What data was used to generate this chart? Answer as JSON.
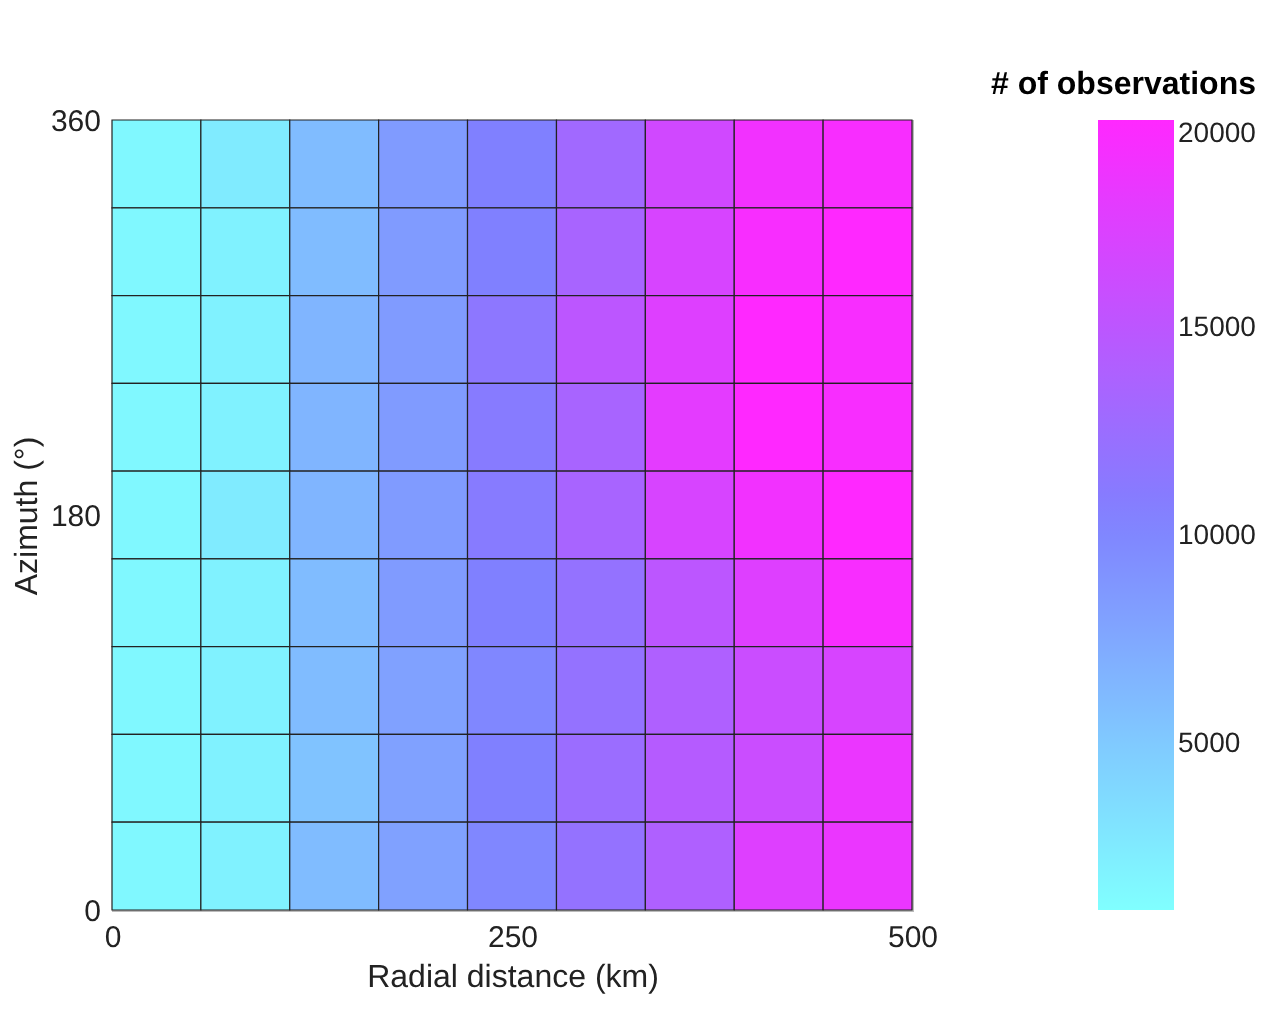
{
  "chart_data": {
    "type": "heatmap",
    "xlabel": "Radial distance (km)",
    "ylabel": "Azimuth (°)",
    "clabel": "# of observations",
    "x": [
      27.8,
      83.3,
      138.9,
      194.4,
      250,
      305.6,
      361.1,
      416.7,
      472.2
    ],
    "xlim": [
      0,
      500
    ],
    "xticks": [
      0,
      250,
      500
    ],
    "ylim": [
      0,
      360
    ],
    "yticks": [
      0,
      180,
      360
    ],
    "clim": [
      1000,
      20000
    ],
    "cticks": [
      5000,
      10000,
      15000,
      20000
    ],
    "cells": [
      [
        1500,
        2500,
        6000,
        8500,
        10500,
        13000,
        16500,
        19000,
        19500
      ],
      [
        1500,
        2000,
        6000,
        8500,
        10500,
        13500,
        17000,
        19500,
        20000
      ],
      [
        1500,
        2000,
        6500,
        8500,
        11500,
        15000,
        17500,
        20000,
        19500
      ],
      [
        1500,
        2000,
        6500,
        8500,
        11000,
        13500,
        18000,
        20000,
        19500
      ],
      [
        1500,
        2500,
        6500,
        8500,
        11000,
        13500,
        17000,
        19000,
        20000
      ],
      [
        1500,
        2000,
        6000,
        8500,
        10500,
        12000,
        15000,
        17500,
        19500
      ],
      [
        1500,
        2000,
        6000,
        8000,
        10000,
        12000,
        14000,
        16000,
        17000
      ],
      [
        1500,
        2000,
        5500,
        8000,
        10500,
        12500,
        14500,
        16000,
        18500
      ],
      [
        1500,
        2000,
        6000,
        8000,
        10000,
        12000,
        14000,
        17500,
        18500
      ]
    ]
  }
}
